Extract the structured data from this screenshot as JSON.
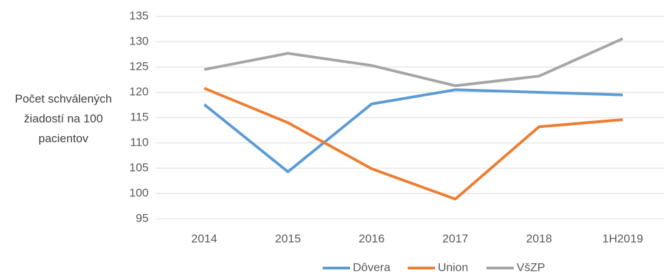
{
  "chart_data": {
    "type": "line",
    "y_label": "Počet schválených žiadostí na 100 pacientov",
    "categories": [
      "2014",
      "2015",
      "2016",
      "2017",
      "2018",
      "1H2019"
    ],
    "series": [
      {
        "name": "Dôvera",
        "color": "#5b9bd5",
        "values": [
          117.6,
          104.3,
          117.7,
          120.5,
          120.0,
          119.5
        ]
      },
      {
        "name": "Union",
        "color": "#ed7d31",
        "values": [
          120.8,
          114.0,
          104.9,
          98.9,
          113.2,
          114.6
        ]
      },
      {
        "name": "VšZP",
        "color": "#a5a5a5",
        "values": [
          124.5,
          127.7,
          125.3,
          121.3,
          123.2,
          130.6
        ]
      }
    ],
    "ylim": [
      95,
      135
    ],
    "yticks": [
      95,
      100,
      105,
      110,
      115,
      120,
      125,
      130,
      135
    ],
    "grid": true,
    "legend": "bottom"
  }
}
